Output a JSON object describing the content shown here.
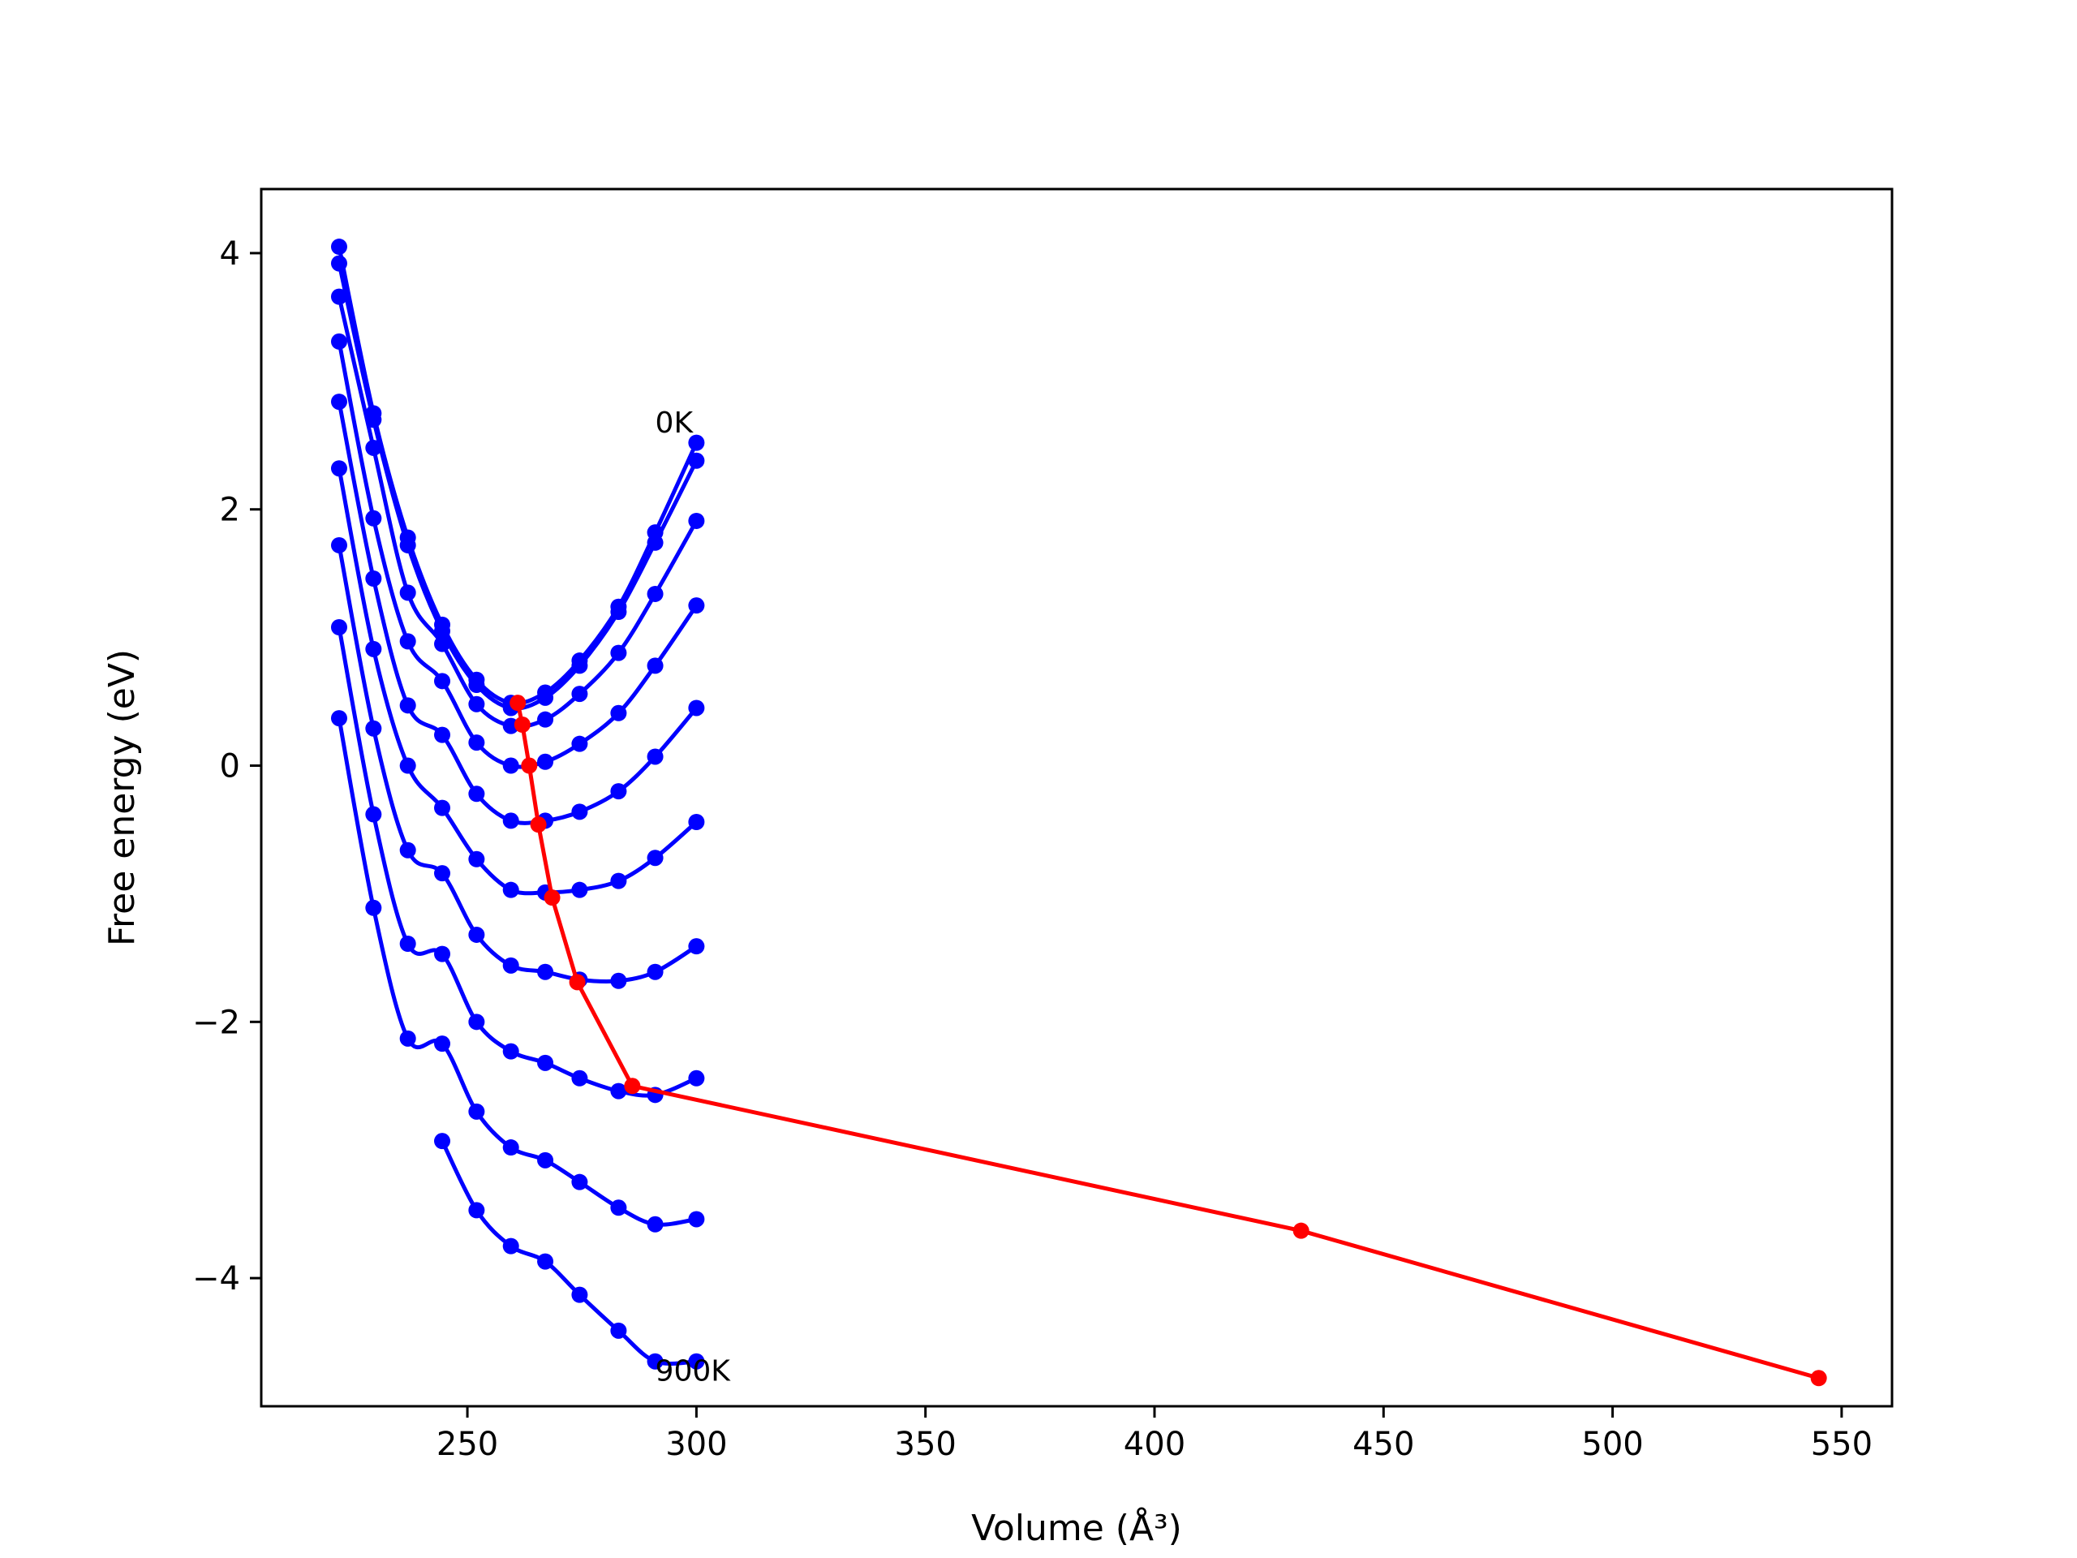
{
  "chart_data": {
    "type": "line",
    "title": "",
    "xlabel": "Volume (Å³)",
    "ylabel": "Free energy (eV)",
    "xlim": [
      205,
      561
    ],
    "ylim": [
      -5.0,
      4.5
    ],
    "x_ticks": [
      250,
      300,
      350,
      400,
      450,
      500,
      550
    ],
    "y_ticks": [
      -4,
      -2,
      0,
      2,
      4
    ],
    "x_tick_labels": [
      "250",
      "300",
      "350",
      "400",
      "450",
      "500",
      "550"
    ],
    "y_tick_labels": [
      "−4",
      "−2",
      "0",
      "2",
      "4"
    ],
    "grid": false,
    "legend": "none",
    "colors": {
      "curves": "#0000ff",
      "minima": "#ff0000",
      "frame": "#000000"
    },
    "annotations": [
      {
        "text": "0K",
        "x": 291,
        "y": 2.6
      },
      {
        "text": "900K",
        "x": 291,
        "y": -4.8
      }
    ],
    "x": [
      222,
      229.5,
      237,
      244.5,
      252,
      259.5,
      267,
      274.5,
      283,
      291,
      300
    ],
    "series": [
      {
        "y": [
          4.05,
          2.75,
          1.78,
          1.1,
          0.67,
          0.49,
          0.57,
          0.82,
          1.24,
          1.82,
          2.52
        ]
      },
      {
        "y": [
          3.92,
          2.7,
          1.72,
          1.05,
          0.63,
          0.45,
          0.53,
          0.78,
          1.2,
          1.74,
          2.38
        ]
      },
      {
        "y": [
          3.66,
          2.48,
          1.35,
          0.95,
          0.48,
          0.31,
          0.36,
          0.56,
          0.88,
          1.34,
          1.91
        ]
      },
      {
        "y": [
          3.31,
          1.93,
          0.97,
          0.66,
          0.18,
          0.0,
          0.03,
          0.17,
          0.41,
          0.78,
          1.25
        ]
      },
      {
        "y": [
          2.84,
          1.46,
          0.47,
          0.24,
          -0.22,
          -0.43,
          -0.43,
          -0.36,
          -0.2,
          0.07,
          0.45
        ]
      },
      {
        "y": [
          2.32,
          0.91,
          0.0,
          -0.33,
          -0.73,
          -0.97,
          -0.99,
          -0.97,
          -0.9,
          -0.72,
          -0.44
        ]
      },
      {
        "y": [
          1.72,
          0.29,
          -0.66,
          -0.84,
          -1.32,
          -1.56,
          -1.61,
          -1.67,
          -1.68,
          -1.61,
          -1.41
        ]
      },
      {
        "y": [
          1.08,
          -0.38,
          -1.39,
          -1.47,
          -2.0,
          -2.23,
          -2.32,
          -2.44,
          -2.54,
          -2.57,
          -2.44
        ]
      },
      {
        "y": [
          0.37,
          -1.11,
          -2.13,
          -2.17,
          -2.7,
          -2.98,
          -3.08,
          -3.25,
          -3.45,
          -3.58,
          -3.54
        ]
      },
      {
        "y": [
          null,
          null,
          null,
          -2.93,
          -3.47,
          -3.75,
          -3.87,
          -4.13,
          -4.41,
          -4.65,
          -4.65
        ]
      }
    ],
    "minima_series": {
      "x": [
        261,
        262,
        263.5,
        265.5,
        268.5,
        274,
        286,
        432,
        545
      ],
      "y": [
        0.49,
        0.32,
        0.0,
        -0.46,
        -1.03,
        -1.69,
        -2.5,
        -3.63,
        -4.78
      ]
    }
  }
}
